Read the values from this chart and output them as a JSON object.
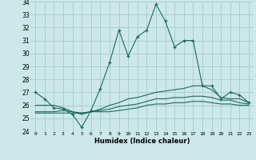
{
  "xlabel": "Humidex (Indice chaleur)",
  "background_color": "#cde8e8",
  "grid_color": "#aacece",
  "line_color": "#1a6b5a",
  "xlim": [
    -0.5,
    23.5
  ],
  "ylim": [
    24,
    34
  ],
  "yticks": [
    24,
    25,
    26,
    27,
    28,
    29,
    30,
    31,
    32,
    33,
    34
  ],
  "xticks": [
    0,
    1,
    2,
    3,
    4,
    5,
    6,
    7,
    8,
    9,
    10,
    11,
    12,
    13,
    14,
    15,
    16,
    17,
    18,
    19,
    20,
    21,
    22,
    23
  ],
  "series": [
    {
      "x": [
        0,
        1,
        2,
        3,
        4,
        5,
        6,
        7,
        8,
        9,
        10,
        11,
        12,
        13,
        14,
        15,
        16,
        17,
        18,
        19,
        20,
        21,
        22,
        23
      ],
      "y": [
        27.0,
        26.5,
        25.8,
        25.7,
        25.3,
        24.3,
        25.6,
        27.3,
        29.3,
        31.8,
        29.8,
        31.3,
        31.8,
        33.8,
        32.5,
        30.5,
        31.0,
        31.0,
        27.5,
        27.5,
        26.5,
        27.0,
        26.8,
        26.2
      ],
      "marker": true
    },
    {
      "x": [
        0,
        1,
        2,
        3,
        4,
        5,
        6,
        7,
        8,
        9,
        10,
        11,
        12,
        13,
        14,
        15,
        16,
        17,
        18,
        19,
        20,
        21,
        22,
        23
      ],
      "y": [
        26.0,
        26.0,
        26.0,
        25.8,
        25.5,
        25.3,
        25.5,
        25.7,
        26.0,
        26.2,
        26.5,
        26.6,
        26.8,
        27.0,
        27.1,
        27.2,
        27.3,
        27.5,
        27.5,
        27.2,
        26.6,
        26.5,
        26.5,
        26.2
      ],
      "marker": false
    },
    {
      "x": [
        0,
        1,
        2,
        3,
        4,
        5,
        6,
        7,
        8,
        9,
        10,
        11,
        12,
        13,
        14,
        15,
        16,
        17,
        18,
        19,
        20,
        21,
        22,
        23
      ],
      "y": [
        25.5,
        25.5,
        25.5,
        25.6,
        25.5,
        25.4,
        25.5,
        25.6,
        25.7,
        25.9,
        26.0,
        26.1,
        26.3,
        26.5,
        26.5,
        26.6,
        26.6,
        26.7,
        26.7,
        26.6,
        26.4,
        26.4,
        26.2,
        26.1
      ],
      "marker": false
    },
    {
      "x": [
        0,
        1,
        2,
        3,
        4,
        5,
        6,
        7,
        8,
        9,
        10,
        11,
        12,
        13,
        14,
        15,
        16,
        17,
        18,
        19,
        20,
        21,
        22,
        23
      ],
      "y": [
        25.4,
        25.4,
        25.4,
        25.4,
        25.4,
        25.4,
        25.5,
        25.5,
        25.5,
        25.6,
        25.7,
        25.8,
        26.0,
        26.1,
        26.1,
        26.2,
        26.2,
        26.3,
        26.3,
        26.2,
        26.1,
        26.1,
        26.0,
        26.0
      ],
      "marker": false
    }
  ]
}
